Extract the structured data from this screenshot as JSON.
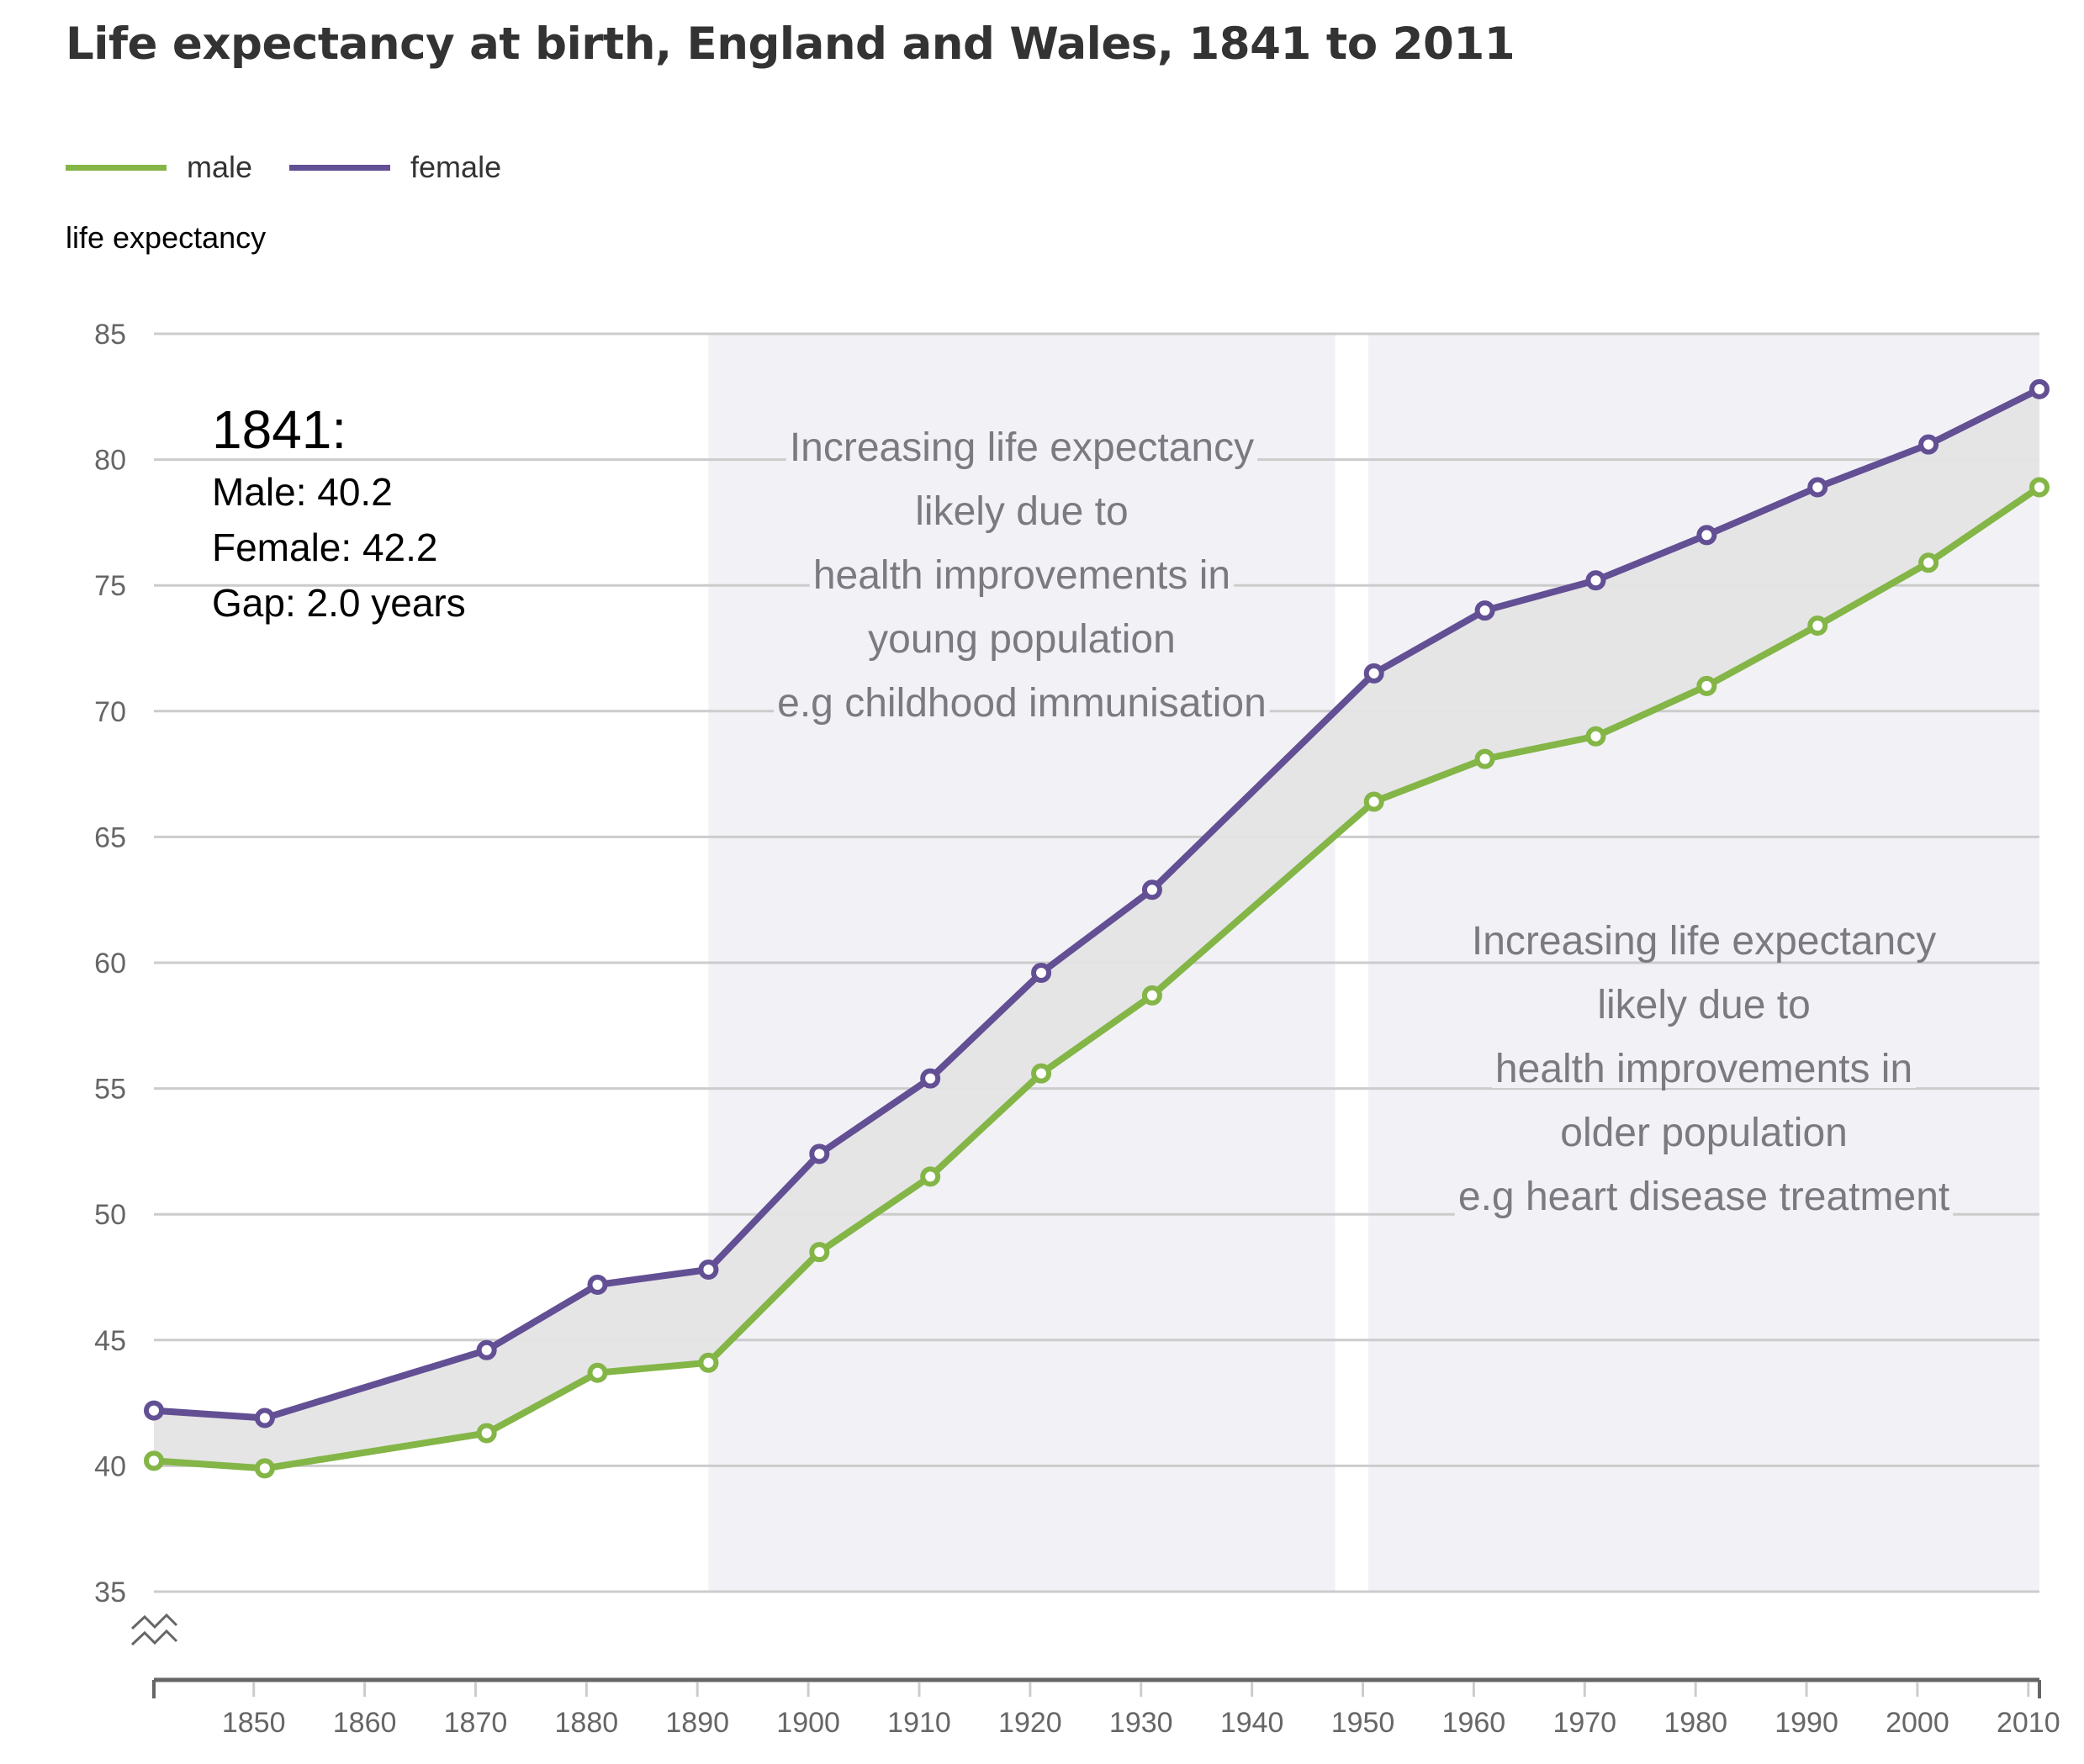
{
  "title": "Life expectancy at birth, England and Wales, 1841 to 2011",
  "legend": [
    {
      "label": "male",
      "color": "#84b547"
    },
    {
      "label": "female",
      "color": "#624f94"
    }
  ],
  "info_box": {
    "year_label": "1841:",
    "male_line": "Male: 40.2",
    "female_line": "Female: 42.2",
    "gap_line": "Gap: 2.0 years"
  },
  "colors": {
    "male": "#84b547",
    "female": "#624f94",
    "gap_fill": "#e4e4e4",
    "band_fill": "#f1f1f6",
    "grid": "#cccccc",
    "axis": "#666666",
    "annotation_text": "#7a7a80"
  },
  "chart_data": {
    "type": "line",
    "title": "Life expectancy at birth, England and Wales, 1841 to 2011",
    "xlabel": "",
    "ylabel": "life expectancy",
    "xlim": [
      1841,
      2011
    ],
    "ylim": [
      35,
      85
    ],
    "y_axis_break": true,
    "grid": true,
    "legend_position": "top-left",
    "yticks": [
      35,
      40,
      45,
      50,
      55,
      60,
      65,
      70,
      75,
      80,
      85
    ],
    "xticks": [
      1850,
      1860,
      1870,
      1880,
      1890,
      1900,
      1910,
      1920,
      1930,
      1940,
      1950,
      1960,
      1970,
      1980,
      1990,
      2000,
      2010
    ],
    "x": [
      1841,
      1851,
      1871,
      1881,
      1891,
      1901,
      1911,
      1921,
      1931,
      1951,
      1961,
      1971,
      1981,
      1991,
      2001,
      2011
    ],
    "series": [
      {
        "name": "male",
        "values": [
          40.2,
          39.9,
          41.3,
          43.7,
          44.1,
          48.5,
          51.5,
          55.6,
          58.7,
          66.4,
          68.1,
          69.0,
          71.0,
          73.4,
          75.9,
          78.9
        ]
      },
      {
        "name": "female",
        "values": [
          42.2,
          41.9,
          44.6,
          47.2,
          47.8,
          52.4,
          55.4,
          59.6,
          62.9,
          71.5,
          74.0,
          75.2,
          77.0,
          78.9,
          80.6,
          82.8
        ]
      }
    ],
    "shaded_bands": [
      {
        "from": 1891,
        "to": 1947.5,
        "lines": [
          "Increasing life expectancy",
          "likely due to",
          "health improvements in",
          "young population",
          "e.g childhood immunisation"
        ]
      },
      {
        "from": 1950.5,
        "to": 2011,
        "lines": [
          "Increasing life expectancy",
          "likely due to",
          "health improvements in",
          "older population",
          "e.g heart disease treatment"
        ]
      }
    ]
  }
}
